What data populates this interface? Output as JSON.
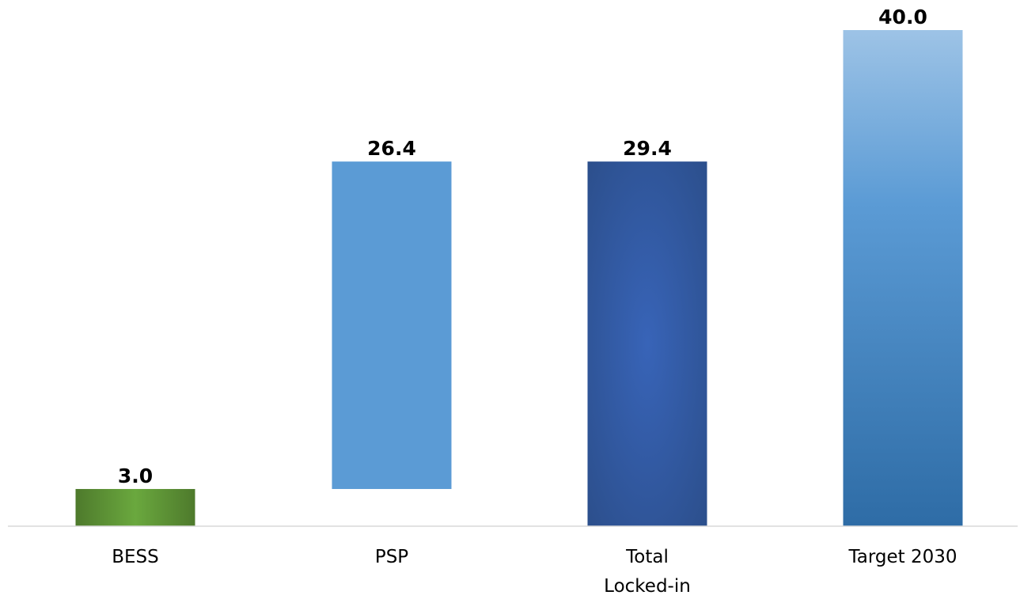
{
  "chart_data": {
    "type": "waterfall",
    "categories": [
      [
        "BESS"
      ],
      [
        "PSP"
      ],
      [
        "Total",
        "Locked-in"
      ],
      [
        "Target 2030"
      ]
    ],
    "bars": [
      {
        "name": "BESS",
        "base": 0,
        "value": 3.0,
        "label": "3.0",
        "color_scheme": "green"
      },
      {
        "name": "PSP",
        "base": 3.0,
        "value": 26.4,
        "label": "26.4",
        "color_scheme": "flat-blue"
      },
      {
        "name": "Total Locked-in",
        "base": 0,
        "value": 29.4,
        "label": "29.4",
        "color_scheme": "dark-blue"
      },
      {
        "name": "Target 2030",
        "base": 0,
        "value": 40.0,
        "label": "40.0",
        "color_scheme": "light-blue"
      }
    ],
    "ylim": [
      0,
      40
    ],
    "grid": false,
    "legend": "none",
    "colors": {
      "green_edge": "#4e7a2c",
      "green_center": "#6aa83e",
      "flat_blue": "#5b9bd5",
      "dark_blue_edge": "#2c4f8c",
      "dark_blue_center": "#3864b8",
      "light_blue_top": "#9dc3e6",
      "light_blue_mid": "#5b9bd5",
      "light_blue_bottom": "#2e6ca6",
      "axis": "#d9d9d9"
    }
  }
}
